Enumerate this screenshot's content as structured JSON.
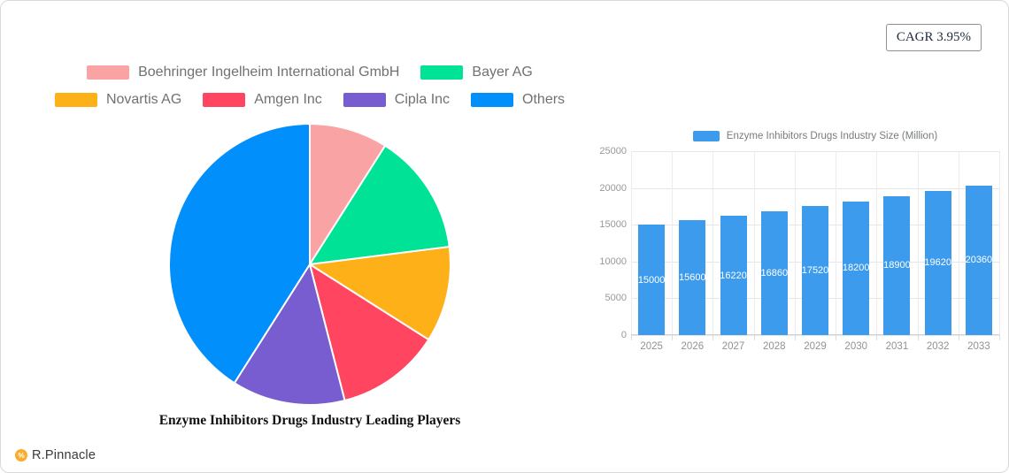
{
  "page": {
    "cagr_label": "CAGR 3.95%",
    "brand_name": "R.Pinnacle",
    "brand_color": "#FBAB2D"
  },
  "chart_data": [
    {
      "type": "pie",
      "title": "Enzyme Inhibitors Drugs Industry Leading Players",
      "legend_position": "top",
      "labels": [
        "Boehringer Ingelheim International GmbH",
        "Bayer AG",
        "Novartis AG",
        "Amgen Inc",
        "Cipla Inc",
        "Others"
      ],
      "values": [
        9,
        14,
        11,
        12,
        13,
        41
      ],
      "colors": [
        "#F9A3A4",
        "#00E396",
        "#FEB019",
        "#FF4560",
        "#775DD0",
        "#008FFB"
      ]
    },
    {
      "type": "bar",
      "legend_position": "top",
      "categories": [
        "2025",
        "2026",
        "2027",
        "2028",
        "2029",
        "2030",
        "2031",
        "2032",
        "2033"
      ],
      "series": [
        {
          "name": "Enzyme Inhibitors Drugs Industry Size (Million)",
          "values": [
            15000,
            15600,
            16220,
            16860,
            17520,
            18200,
            18900,
            19620,
            20360
          ],
          "color": "#3D9BEE"
        }
      ],
      "ylim": [
        0,
        25000
      ],
      "yticks": [
        0,
        5000,
        10000,
        15000,
        20000,
        25000
      ],
      "grid": true,
      "value_labels": "inside-center",
      "label_color": "#ffffff"
    }
  ]
}
